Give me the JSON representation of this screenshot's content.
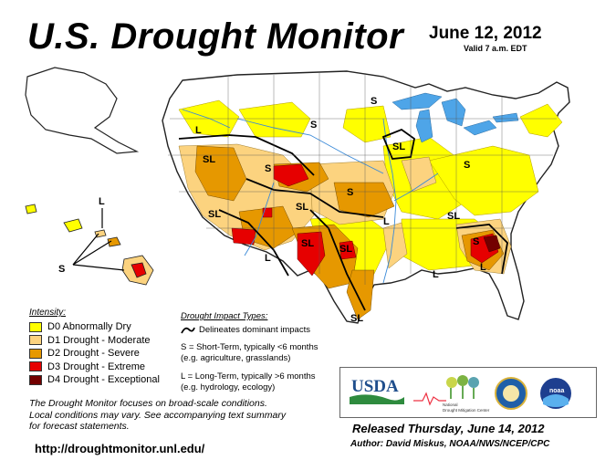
{
  "header": {
    "title": "U.S. Drought Monitor",
    "date": "June 12, 2012",
    "valid": "Valid 7 a.m. EDT"
  },
  "legend": {
    "title": "Intensity:",
    "items": [
      {
        "label": "D0 Abnormally Dry",
        "color": "#ffff00"
      },
      {
        "label": "D1 Drought - Moderate",
        "color": "#fcd37f"
      },
      {
        "label": "D2 Drought - Severe",
        "color": "#e69800"
      },
      {
        "label": "D3 Drought - Extreme",
        "color": "#e60000"
      },
      {
        "label": "D4 Drought - Exceptional",
        "color": "#730000"
      }
    ]
  },
  "impact_types": {
    "title": "Drought Impact Types:",
    "line_label": "Delineates dominant impacts",
    "short_term": "S = Short-Term, typically <6 months",
    "short_term_eg": "(e.g. agriculture, grasslands)",
    "long_term": "L = Long-Term, typically >6 months",
    "long_term_eg": "(e.g. hydrology, ecology)"
  },
  "footnote": {
    "line1": "The Drought Monitor focuses on broad-scale conditions.",
    "line2": "Local conditions may vary. See accompanying text summary",
    "line3": "for forecast statements."
  },
  "url": "http://droughtmonitor.unl.edu/",
  "released": "Released Thursday, June 14, 2012",
  "author": "Author: David Miskus, NOAA/NWS/NCEP/CPC",
  "logos": {
    "usda": "USDA",
    "ndmc_line1": "National",
    "ndmc_line2": "Drought Mitigation Center",
    "noaa": "noaa"
  },
  "map_labels": {
    "pnw_l": "L",
    "nd_s": "S",
    "mn_s": "S",
    "wy_s": "S",
    "sl_west": "SL",
    "sl_mid": "SL",
    "sl_az": "SL",
    "sl_nm": "SL",
    "sl_tx": "SL",
    "sl_ia": "SL",
    "sl_gulf": "SL",
    "sl_ky": "SL",
    "l_nm": "L",
    "l_ar": "L",
    "l_la": "L",
    "l_ga": "L",
    "s_ga": "S",
    "s_ok": "S",
    "s_ks": "S",
    "hi_l": "L",
    "hi_s": "S"
  }
}
